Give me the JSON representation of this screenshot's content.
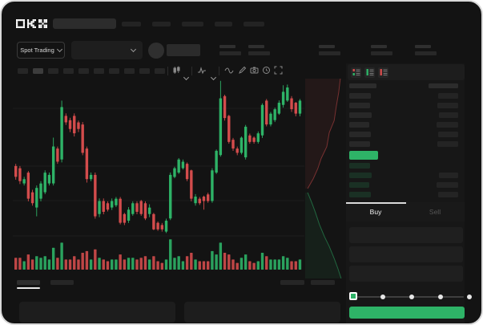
{
  "header": {
    "logo_text": "OKX",
    "nav_placeholder_count": 5
  },
  "subheader": {
    "market_selector_label": "Spot Trading",
    "stat_group_positions": [
      272,
      308,
      396,
      461,
      516
    ]
  },
  "toolbar": {
    "timeframe_slots": 10,
    "active_slot": 1,
    "icons": [
      "candles-icon",
      "chevron-down-icon",
      "indicators-icon",
      "chevron-down-icon",
      "line-style-icon",
      "draw-icon",
      "camera-icon",
      "history-icon",
      "fullscreen-icon"
    ]
  },
  "orderbook": {
    "view_icons": [
      "book-both-icon",
      "book-bids-icon",
      "book-asks-icon"
    ],
    "ask_rows": 6,
    "bid_rows": 4,
    "price_highlight_color": "#2eb367"
  },
  "trade_panel": {
    "tabs": [
      {
        "label": "Buy",
        "active": true
      },
      {
        "label": "Sell",
        "active": false
      }
    ],
    "input_count": 3,
    "slider_stops": 5,
    "submit_color": "#2eb367"
  },
  "colors": {
    "frame_bg": "#131313",
    "panel_bg": "#171717",
    "green": "#2eb367",
    "red": "#d34c4c",
    "text": "#e6e6e6",
    "muted": "#565656"
  },
  "chart_data": {
    "type": "candlestick",
    "price_range": [
      0,
      108
    ],
    "gridline_prices": [
      88.5,
      48.4,
      24.5,
      0
    ],
    "up_color": "#2eb367",
    "down_color": "#d34c4c",
    "candles": [
      [
        48.5,
        50,
        39,
        41
      ],
      [
        47,
        48.5,
        36,
        38
      ],
      [
        36.4,
        41,
        35,
        39.4
      ],
      [
        43.9,
        45,
        24,
        25.8
      ],
      [
        30.3,
        32,
        21,
        22.7
      ],
      [
        19.7,
        35,
        13.6,
        33.3
      ],
      [
        25.8,
        38,
        24,
        36.4
      ],
      [
        30.3,
        45.5,
        29,
        43.9
      ],
      [
        36.4,
        44,
        35,
        42.4
      ],
      [
        36.4,
        68.2,
        35,
        62.1
      ],
      [
        60.6,
        62,
        50,
        51.5
      ],
      [
        53,
        93.9,
        51,
        89.4
      ],
      [
        83.3,
        85,
        77,
        78.8
      ],
      [
        80.3,
        82,
        72,
        74.2
      ],
      [
        83.3,
        85,
        69,
        71.2
      ],
      [
        78.8,
        80,
        72,
        74.2
      ],
      [
        77.3,
        79,
        56,
        57.6
      ],
      [
        60.6,
        62,
        37,
        39.4
      ],
      [
        39.4,
        44,
        38,
        42.4
      ],
      [
        42.4,
        44,
        12,
        13.6
      ],
      [
        15.2,
        26,
        13,
        24.2
      ],
      [
        24.2,
        26,
        15,
        16.7
      ],
      [
        22.7,
        24,
        17,
        18.2
      ],
      [
        19.7,
        26,
        18,
        24.2
      ],
      [
        21.2,
        27,
        20,
        25.8
      ],
      [
        25.8,
        27,
        8,
        9.1
      ],
      [
        15.2,
        16,
        7.5,
        9.1
      ],
      [
        10.6,
        20,
        9,
        18.2
      ],
      [
        15.2,
        24,
        14,
        22.7
      ],
      [
        22.7,
        24,
        15,
        16.7
      ],
      [
        24.2,
        25,
        14,
        15.2
      ],
      [
        22.7,
        24,
        11,
        12.1
      ],
      [
        15.2,
        22,
        13,
        19.7
      ],
      [
        15.2,
        16,
        4,
        4.5
      ],
      [
        9.1,
        10,
        3.5,
        4.5
      ],
      [
        7.6,
        9,
        3,
        4.5
      ],
      [
        3,
        12,
        2,
        10.6
      ],
      [
        12.1,
        44,
        11,
        42.4
      ],
      [
        40.9,
        48,
        40,
        47
      ],
      [
        43.9,
        54,
        43,
        53
      ],
      [
        47,
        53,
        46,
        51.5
      ],
      [
        50,
        51,
        38,
        39.4
      ],
      [
        45.5,
        46,
        24,
        25.8
      ],
      [
        22.7,
        29,
        21,
        27.3
      ],
      [
        25.8,
        27,
        21.5,
        22.7
      ],
      [
        27.3,
        28,
        18.2,
        24.2
      ],
      [
        28.8,
        30,
        23,
        24.2
      ],
      [
        24.2,
        47,
        23,
        45.5
      ],
      [
        43.9,
        60,
        43,
        59.1
      ],
      [
        56.1,
        107.6,
        55,
        95.5
      ],
      [
        97,
        98,
        80,
        81.8
      ],
      [
        83.3,
        84,
        64,
        65.2
      ],
      [
        66.7,
        68,
        59,
        60.6
      ],
      [
        60.6,
        62,
        56,
        57.6
      ],
      [
        57.6,
        69,
        56.5,
        68.2
      ],
      [
        54.5,
        77,
        53,
        75.8
      ],
      [
        69.7,
        71,
        64,
        65.2
      ],
      [
        68.2,
        69,
        64,
        65.2
      ],
      [
        65.2,
        72.5,
        64,
        71.2
      ],
      [
        69.7,
        92,
        68,
        90.9
      ],
      [
        93.9,
        95,
        76,
        77.3
      ],
      [
        77.3,
        86,
        76,
        84.8
      ],
      [
        80.3,
        89,
        79,
        87.9
      ],
      [
        84.8,
        94,
        84,
        92.4
      ],
      [
        90.9,
        104.5,
        89,
        100
      ],
      [
        93.9,
        105,
        93,
        103
      ],
      [
        95.5,
        97,
        86,
        87.9
      ],
      [
        92.4,
        93,
        83,
        84.8
      ],
      [
        84.8,
        95,
        83,
        93.9
      ]
    ],
    "volumes": [
      7,
      7,
      5,
      9,
      6,
      8,
      7,
      8,
      6,
      13,
      7,
      16,
      6,
      6,
      8,
      6,
      10,
      11,
      6,
      12,
      7,
      6,
      5,
      6,
      6,
      9,
      6,
      7,
      7,
      6,
      7,
      8,
      6,
      8,
      5,
      4,
      6,
      18,
      7,
      8,
      5,
      8,
      10,
      6,
      5,
      5,
      5,
      11,
      9,
      16,
      10,
      9,
      6,
      4,
      7,
      9,
      5,
      4,
      5,
      10,
      8,
      6,
      6,
      6,
      8,
      7,
      5,
      5,
      6
    ],
    "depth": {
      "type": "depth",
      "asks_curve": [
        [
          0.86,
          0
        ],
        [
          0.82,
          0.07
        ],
        [
          0.76,
          0.14
        ],
        [
          0.71,
          0.21
        ],
        [
          0.59,
          0.27
        ],
        [
          0.53,
          0.34
        ],
        [
          0.39,
          0.4
        ],
        [
          0.31,
          0.45
        ],
        [
          0.2,
          0.5
        ],
        [
          0.06,
          0.55
        ]
      ],
      "bids_curve": [
        [
          0.06,
          0.57
        ],
        [
          0.16,
          0.62
        ],
        [
          0.25,
          0.67
        ],
        [
          0.35,
          0.73
        ],
        [
          0.47,
          0.79
        ],
        [
          0.59,
          0.84
        ],
        [
          0.71,
          0.9
        ],
        [
          0.8,
          0.95
        ],
        [
          0.88,
          1.0
        ]
      ]
    }
  }
}
